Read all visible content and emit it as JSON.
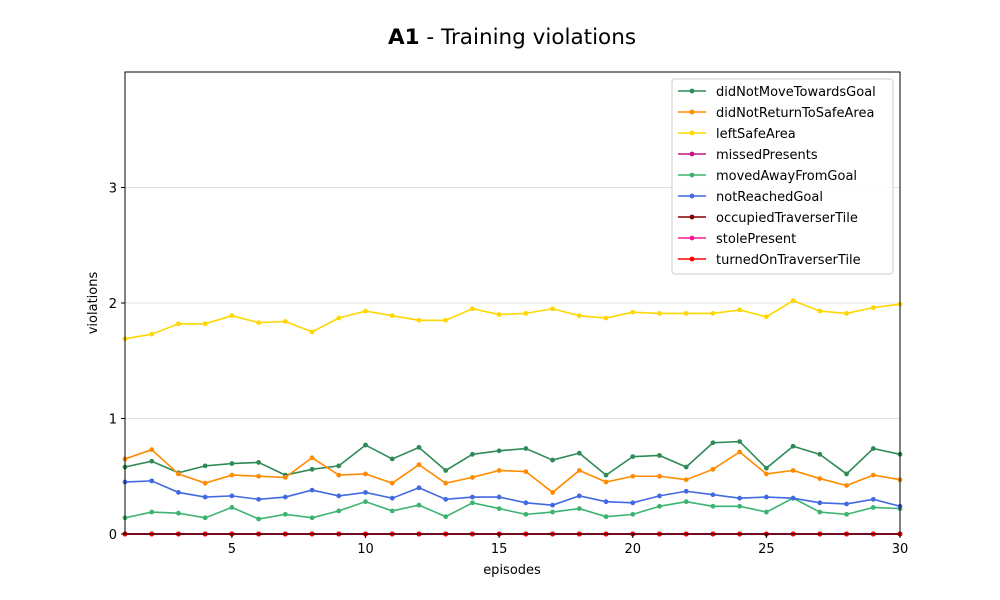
{
  "chart_data": {
    "type": "line",
    "title_bold": "A1",
    "title_rest": " - Training violations",
    "xlabel": "episodes",
    "ylabel": "violations",
    "xlim": [
      1,
      30
    ],
    "ylim": [
      0,
      4
    ],
    "xticks": [
      5,
      10,
      15,
      20,
      25,
      30
    ],
    "yticks": [
      0,
      1,
      2,
      3
    ],
    "grid": "horizontal",
    "legend_position": "top-right",
    "x": [
      1,
      2,
      3,
      4,
      5,
      6,
      7,
      8,
      9,
      10,
      11,
      12,
      13,
      14,
      15,
      16,
      17,
      18,
      19,
      20,
      21,
      22,
      23,
      24,
      25,
      26,
      27,
      28,
      29,
      30
    ],
    "series": [
      {
        "name": "didNotMoveTowardsGoal",
        "color": "#2e8b57",
        "values": [
          0.58,
          0.63,
          0.53,
          0.59,
          0.61,
          0.62,
          0.51,
          0.56,
          0.59,
          0.77,
          0.65,
          0.75,
          0.55,
          0.69,
          0.72,
          0.74,
          0.64,
          0.7,
          0.51,
          0.67,
          0.68,
          0.58,
          0.79,
          0.8,
          0.57,
          0.76,
          0.69,
          0.52,
          0.74,
          0.69
        ]
      },
      {
        "name": "didNotReturnToSafeArea",
        "color": "#ff8c00",
        "values": [
          0.65,
          0.73,
          0.52,
          0.44,
          0.51,
          0.5,
          0.49,
          0.66,
          0.51,
          0.52,
          0.44,
          0.6,
          0.44,
          0.49,
          0.55,
          0.54,
          0.36,
          0.55,
          0.45,
          0.5,
          0.5,
          0.47,
          0.56,
          0.71,
          0.52,
          0.55,
          0.48,
          0.42,
          0.51,
          0.47
        ]
      },
      {
        "name": "leftSafeArea",
        "color": "#ffd700",
        "values": [
          1.69,
          1.73,
          1.82,
          1.82,
          1.89,
          1.83,
          1.84,
          1.75,
          1.87,
          1.93,
          1.89,
          1.85,
          1.85,
          1.95,
          1.9,
          1.91,
          1.95,
          1.89,
          1.87,
          1.92,
          1.91,
          1.91,
          1.91,
          1.94,
          1.88,
          2.02,
          1.93,
          1.91,
          1.96,
          1.99
        ]
      },
      {
        "name": "missedPresents",
        "color": "#c71585",
        "values": [
          0,
          0,
          0,
          0,
          0,
          0,
          0,
          0,
          0,
          0,
          0,
          0,
          0,
          0,
          0,
          0,
          0,
          0,
          0,
          0,
          0,
          0,
          0,
          0,
          0,
          0,
          0,
          0,
          0,
          0
        ]
      },
      {
        "name": "movedAwayFromGoal",
        "color": "#3cb371",
        "values": [
          0.14,
          0.19,
          0.18,
          0.14,
          0.23,
          0.13,
          0.17,
          0.14,
          0.2,
          0.28,
          0.2,
          0.25,
          0.15,
          0.27,
          0.22,
          0.17,
          0.19,
          0.22,
          0.15,
          0.17,
          0.24,
          0.28,
          0.24,
          0.24,
          0.19,
          0.31,
          0.19,
          0.17,
          0.23,
          0.22
        ]
      },
      {
        "name": "notReachedGoal",
        "color": "#4169e1",
        "values": [
          0.45,
          0.46,
          0.36,
          0.32,
          0.33,
          0.3,
          0.32,
          0.38,
          0.33,
          0.36,
          0.31,
          0.4,
          0.3,
          0.32,
          0.32,
          0.27,
          0.25,
          0.33,
          0.28,
          0.27,
          0.33,
          0.37,
          0.34,
          0.31,
          0.32,
          0.31,
          0.27,
          0.26,
          0.3,
          0.24
        ]
      },
      {
        "name": "occupiedTraverserTile",
        "color": "#800000",
        "values": [
          0,
          0,
          0,
          0,
          0,
          0,
          0,
          0,
          0,
          0,
          0,
          0,
          0,
          0,
          0,
          0,
          0,
          0,
          0,
          0,
          0,
          0,
          0,
          0,
          0,
          0,
          0,
          0,
          0,
          0
        ]
      },
      {
        "name": "stolePresent",
        "color": "#ff1493",
        "values": [
          0,
          0,
          0,
          0,
          0,
          0,
          0,
          0,
          0,
          0,
          0,
          0,
          0,
          0,
          0,
          0,
          0,
          0,
          0,
          0,
          0,
          0,
          0,
          0,
          0,
          0,
          0,
          0,
          0,
          0
        ]
      },
      {
        "name": "turnedOnTraverserTile",
        "color": "#ff0000",
        "values": [
          0,
          0,
          0,
          0,
          0,
          0,
          0,
          0,
          0,
          0,
          0,
          0,
          0,
          0,
          0,
          0,
          0,
          0,
          0,
          0,
          0,
          0,
          0,
          0,
          0,
          0,
          0,
          0,
          0,
          0
        ]
      }
    ]
  }
}
